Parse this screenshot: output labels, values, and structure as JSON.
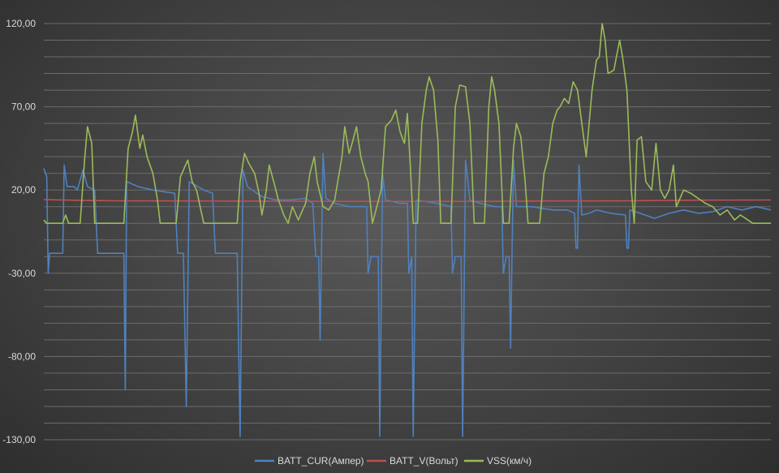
{
  "chart_data": {
    "type": "line",
    "title": "",
    "xlabel": "",
    "ylabel": "",
    "ylim": [
      -130,
      120
    ],
    "yticks": [
      -130,
      -80,
      -30,
      20,
      70,
      120
    ],
    "ytick_labels": [
      "-130,00",
      "-80,00",
      "-30,00",
      "20,00",
      "70,00",
      "120,00"
    ],
    "grid": true,
    "legend_position": "bottom",
    "x_range": [
      0,
      1000
    ],
    "series": [
      {
        "name": "BATT_CUR(Ампер)",
        "color": "#4f81bd",
        "points": [
          [
            0,
            33
          ],
          [
            4,
            28
          ],
          [
            6,
            -30
          ],
          [
            8,
            -18
          ],
          [
            26,
            -18
          ],
          [
            28,
            35
          ],
          [
            32,
            22
          ],
          [
            42,
            22
          ],
          [
            46,
            20
          ],
          [
            54,
            32
          ],
          [
            60,
            22
          ],
          [
            70,
            20
          ],
          [
            74,
            -18
          ],
          [
            110,
            -18
          ],
          [
            112,
            -100
          ],
          [
            114,
            25
          ],
          [
            130,
            22
          ],
          [
            150,
            20
          ],
          [
            180,
            18
          ],
          [
            184,
            -18
          ],
          [
            192,
            -18
          ],
          [
            196,
            -110
          ],
          [
            200,
            25
          ],
          [
            220,
            20
          ],
          [
            232,
            18
          ],
          [
            236,
            -18
          ],
          [
            266,
            -18
          ],
          [
            270,
            -128
          ],
          [
            274,
            32
          ],
          [
            280,
            22
          ],
          [
            300,
            16
          ],
          [
            320,
            14
          ],
          [
            340,
            14
          ],
          [
            360,
            15
          ],
          [
            370,
            12
          ],
          [
            374,
            -20
          ],
          [
            378,
            -20
          ],
          [
            380,
            -70
          ],
          [
            384,
            42
          ],
          [
            388,
            15
          ],
          [
            400,
            12
          ],
          [
            420,
            10
          ],
          [
            444,
            10
          ],
          [
            446,
            -30
          ],
          [
            450,
            -20
          ],
          [
            460,
            -20
          ],
          [
            462,
            -128
          ],
          [
            466,
            30
          ],
          [
            470,
            14
          ],
          [
            490,
            12
          ],
          [
            500,
            12
          ],
          [
            502,
            -30
          ],
          [
            506,
            -20
          ],
          [
            508,
            -128
          ],
          [
            512,
            14
          ],
          [
            540,
            12
          ],
          [
            560,
            10
          ],
          [
            562,
            -30
          ],
          [
            566,
            -20
          ],
          [
            574,
            -20
          ],
          [
            576,
            -128
          ],
          [
            580,
            38
          ],
          [
            586,
            14
          ],
          [
            600,
            12
          ],
          [
            620,
            10
          ],
          [
            630,
            10
          ],
          [
            632,
            -30
          ],
          [
            636,
            -20
          ],
          [
            640,
            -20
          ],
          [
            642,
            -75
          ],
          [
            646,
            38
          ],
          [
            650,
            10
          ],
          [
            670,
            10
          ],
          [
            700,
            8
          ],
          [
            720,
            8
          ],
          [
            730,
            6
          ],
          [
            732,
            -15
          ],
          [
            734,
            -15
          ],
          [
            736,
            35
          ],
          [
            740,
            5
          ],
          [
            750,
            6
          ],
          [
            760,
            8
          ],
          [
            780,
            6
          ],
          [
            800,
            5
          ],
          [
            802,
            -15
          ],
          [
            804,
            -15
          ],
          [
            806,
            8
          ],
          [
            820,
            6
          ],
          [
            840,
            3
          ],
          [
            860,
            6
          ],
          [
            880,
            8
          ],
          [
            900,
            6
          ],
          [
            920,
            7
          ],
          [
            940,
            10
          ],
          [
            960,
            8
          ],
          [
            980,
            10
          ],
          [
            1000,
            8
          ]
        ]
      },
      {
        "name": "BATT_V(Вольт)",
        "color": "#c0504d",
        "points": [
          [
            0,
            14.2
          ],
          [
            50,
            13.8
          ],
          [
            100,
            13.5
          ],
          [
            200,
            13.4
          ],
          [
            300,
            13.3
          ],
          [
            400,
            13.2
          ],
          [
            500,
            13.2
          ],
          [
            600,
            13.2
          ],
          [
            700,
            13.4
          ],
          [
            800,
            13.5
          ],
          [
            900,
            13.9
          ],
          [
            1000,
            14.0
          ]
        ]
      },
      {
        "name": "VSS(км/ч)",
        "color": "#9bbb59",
        "points": [
          [
            0,
            2
          ],
          [
            4,
            0
          ],
          [
            26,
            0
          ],
          [
            30,
            5
          ],
          [
            34,
            0
          ],
          [
            50,
            0
          ],
          [
            56,
            38
          ],
          [
            60,
            58
          ],
          [
            66,
            48
          ],
          [
            70,
            0
          ],
          [
            110,
            0
          ],
          [
            116,
            45
          ],
          [
            122,
            55
          ],
          [
            126,
            65
          ],
          [
            132,
            45
          ],
          [
            136,
            53
          ],
          [
            142,
            40
          ],
          [
            150,
            30
          ],
          [
            156,
            15
          ],
          [
            160,
            0
          ],
          [
            182,
            0
          ],
          [
            188,
            28
          ],
          [
            194,
            34
          ],
          [
            198,
            38
          ],
          [
            204,
            25
          ],
          [
            210,
            20
          ],
          [
            216,
            8
          ],
          [
            220,
            0
          ],
          [
            266,
            0
          ],
          [
            270,
            25
          ],
          [
            276,
            42
          ],
          [
            282,
            36
          ],
          [
            290,
            30
          ],
          [
            296,
            18
          ],
          [
            300,
            5
          ],
          [
            306,
            20
          ],
          [
            310,
            35
          ],
          [
            318,
            22
          ],
          [
            322,
            15
          ],
          [
            330,
            5
          ],
          [
            336,
            0
          ],
          [
            342,
            10
          ],
          [
            350,
            2
          ],
          [
            360,
            12
          ],
          [
            366,
            30
          ],
          [
            372,
            40
          ],
          [
            376,
            25
          ],
          [
            384,
            10
          ],
          [
            392,
            8
          ],
          [
            400,
            14
          ],
          [
            410,
            40
          ],
          [
            414,
            58
          ],
          [
            420,
            42
          ],
          [
            424,
            48
          ],
          [
            430,
            58
          ],
          [
            436,
            40
          ],
          [
            442,
            30
          ],
          [
            446,
            25
          ],
          [
            452,
            0
          ],
          [
            464,
            20
          ],
          [
            470,
            58
          ],
          [
            478,
            62
          ],
          [
            484,
            68
          ],
          [
            490,
            55
          ],
          [
            496,
            48
          ],
          [
            500,
            66
          ],
          [
            504,
            35
          ],
          [
            508,
            0
          ],
          [
            514,
            0
          ],
          [
            520,
            60
          ],
          [
            526,
            80
          ],
          [
            530,
            88
          ],
          [
            536,
            80
          ],
          [
            542,
            50
          ],
          [
            546,
            0
          ],
          [
            560,
            0
          ],
          [
            566,
            70
          ],
          [
            572,
            83
          ],
          [
            580,
            82
          ],
          [
            586,
            60
          ],
          [
            592,
            0
          ],
          [
            606,
            0
          ],
          [
            612,
            70
          ],
          [
            616,
            88
          ],
          [
            620,
            80
          ],
          [
            626,
            60
          ],
          [
            632,
            0
          ],
          [
            640,
            0
          ],
          [
            646,
            45
          ],
          [
            650,
            60
          ],
          [
            656,
            52
          ],
          [
            662,
            25
          ],
          [
            666,
            0
          ],
          [
            682,
            0
          ],
          [
            688,
            30
          ],
          [
            694,
            40
          ],
          [
            700,
            60
          ],
          [
            706,
            68
          ],
          [
            710,
            70
          ],
          [
            716,
            75
          ],
          [
            722,
            72
          ],
          [
            728,
            85
          ],
          [
            734,
            80
          ],
          [
            740,
            60
          ],
          [
            746,
            40
          ],
          [
            754,
            80
          ],
          [
            760,
            98
          ],
          [
            764,
            100
          ],
          [
            768,
            120
          ],
          [
            772,
            110
          ],
          [
            776,
            90
          ],
          [
            784,
            92
          ],
          [
            792,
            110
          ],
          [
            796,
            100
          ],
          [
            802,
            80
          ],
          [
            808,
            20
          ],
          [
            812,
            0
          ],
          [
            816,
            50
          ],
          [
            822,
            52
          ],
          [
            828,
            25
          ],
          [
            836,
            20
          ],
          [
            842,
            48
          ],
          [
            848,
            20
          ],
          [
            854,
            15
          ],
          [
            860,
            20
          ],
          [
            866,
            35
          ],
          [
            870,
            10
          ],
          [
            880,
            20
          ],
          [
            890,
            18
          ],
          [
            900,
            15
          ],
          [
            910,
            12
          ],
          [
            920,
            10
          ],
          [
            930,
            5
          ],
          [
            940,
            8
          ],
          [
            950,
            2
          ],
          [
            958,
            5
          ],
          [
            965,
            3
          ],
          [
            975,
            0
          ],
          [
            1000,
            0
          ]
        ]
      }
    ]
  }
}
